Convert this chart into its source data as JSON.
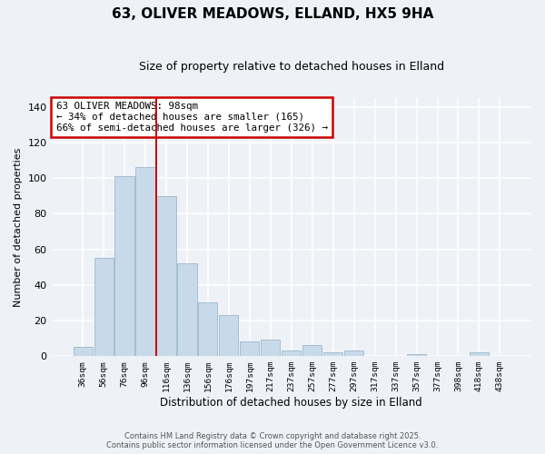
{
  "title": "63, OLIVER MEADOWS, ELLAND, HX5 9HA",
  "subtitle": "Size of property relative to detached houses in Elland",
  "xlabel": "Distribution of detached houses by size in Elland",
  "ylabel": "Number of detached properties",
  "bar_labels": [
    "36sqm",
    "56sqm",
    "76sqm",
    "96sqm",
    "116sqm",
    "136sqm",
    "156sqm",
    "176sqm",
    "197sqm",
    "217sqm",
    "237sqm",
    "257sqm",
    "277sqm",
    "297sqm",
    "317sqm",
    "337sqm",
    "357sqm",
    "377sqm",
    "398sqm",
    "418sqm",
    "438sqm"
  ],
  "bar_values": [
    5,
    55,
    101,
    106,
    90,
    52,
    30,
    23,
    8,
    9,
    3,
    6,
    2,
    3,
    0,
    0,
    1,
    0,
    0,
    2,
    0
  ],
  "bar_color": "#c8daea",
  "bar_edge_color": "#9ab8cc",
  "ylim": [
    0,
    145
  ],
  "yticks": [
    0,
    20,
    40,
    60,
    80,
    100,
    120,
    140
  ],
  "property_line_label": "63 OLIVER MEADOWS: 98sqm",
  "annotation_smaller": "← 34% of detached houses are smaller (165)",
  "annotation_larger": "66% of semi-detached houses are larger (326) →",
  "footer_line1": "Contains HM Land Registry data © Crown copyright and database right 2025.",
  "footer_line2": "Contains public sector information licensed under the Open Government Licence v3.0.",
  "background_color": "#eef2f7",
  "grid_color": "#ffffff",
  "annotation_box_color": "#ffffff",
  "annotation_box_edge": "#cc0000",
  "line_color": "#cc0000",
  "line_x_index": 3.5
}
